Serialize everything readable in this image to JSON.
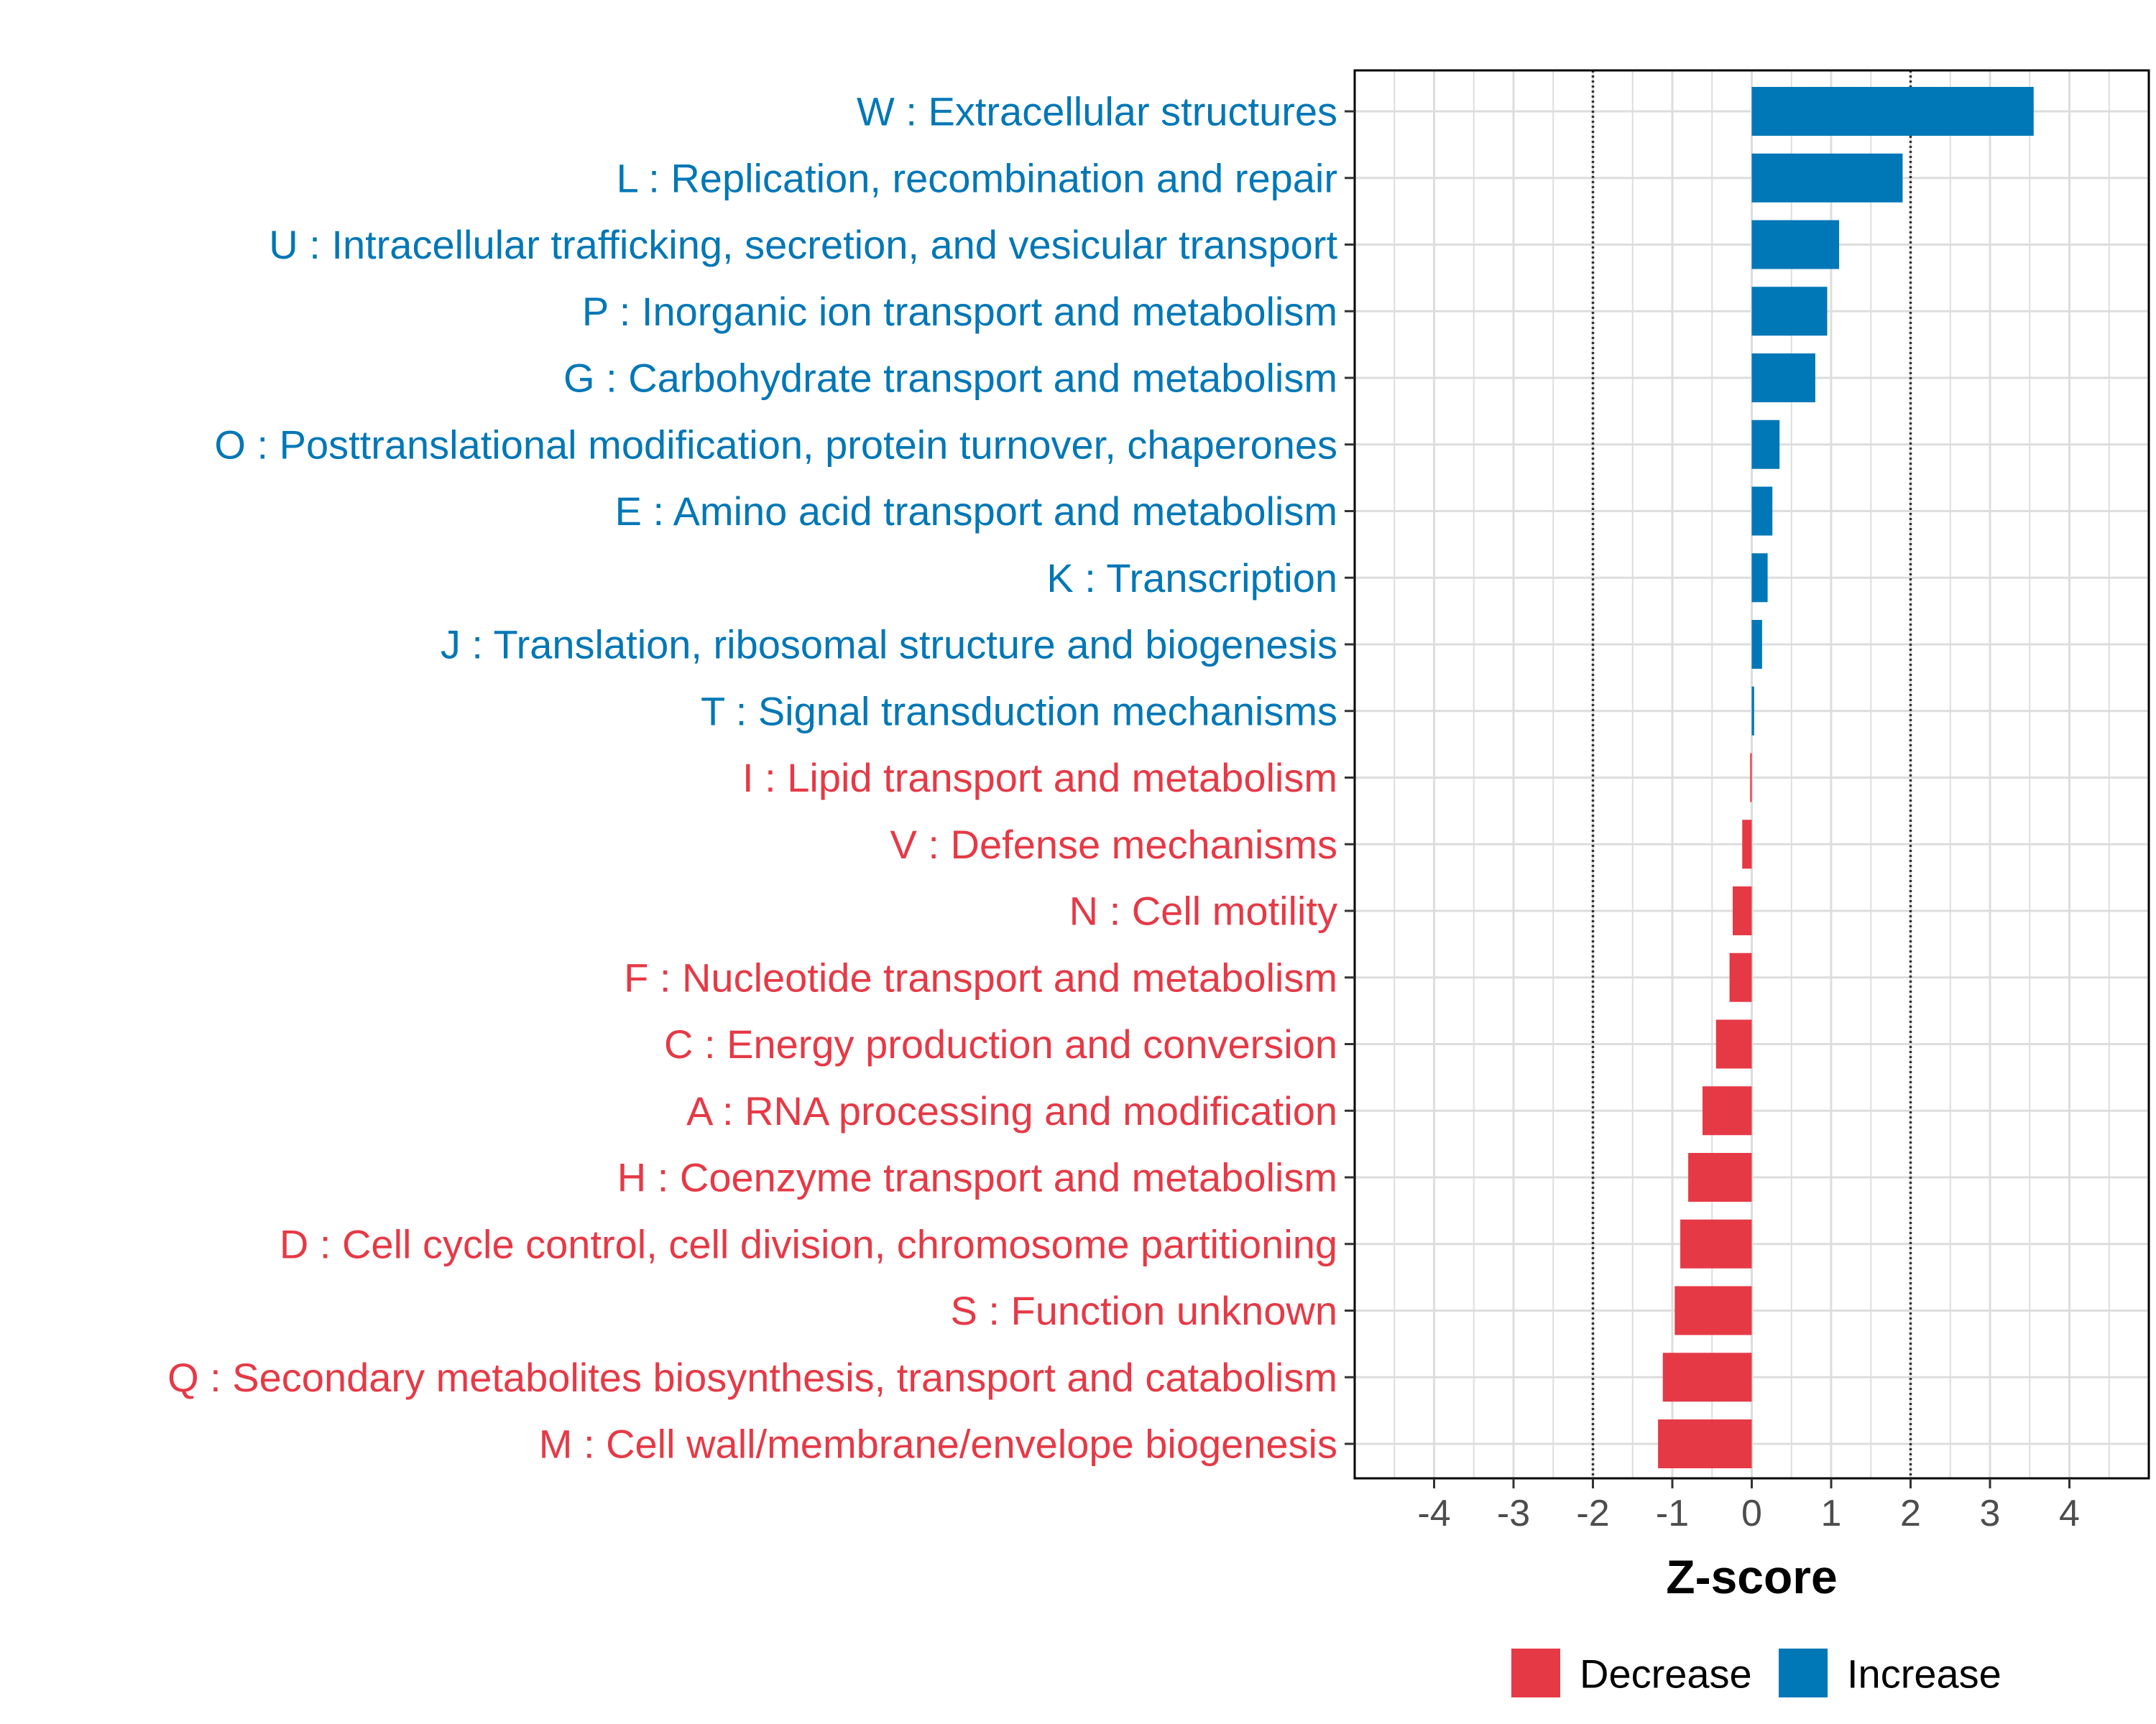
{
  "chart_data": {
    "type": "bar",
    "orientation": "horizontal",
    "title": "",
    "xlabel": "Z-score",
    "ylabel": "",
    "xlim": [
      -5,
      5
    ],
    "xticks": [
      -4,
      -3,
      -2,
      -1,
      0,
      1,
      2,
      3,
      4
    ],
    "xtick_labels": [
      "-4",
      "-3",
      "-2",
      "-1",
      "0",
      "1",
      "2",
      "3",
      "4"
    ],
    "reference_lines": [
      -2,
      2
    ],
    "grid": true,
    "categories": [
      "W : Extracellular structures",
      "L : Replication, recombination and repair",
      "U : Intracellular trafficking, secretion, and vesicular transport",
      "P : Inorganic ion transport and metabolism",
      "G : Carbohydrate transport and metabolism",
      "O : Posttranslational modification, protein turnover, chaperones",
      "E : Amino acid transport and metabolism",
      "K : Transcription",
      "J : Translation, ribosomal structure and biogenesis",
      "T : Signal transduction mechanisms",
      "I : Lipid transport and metabolism",
      "V : Defense mechanisms",
      "N : Cell motility",
      "F : Nucleotide transport and metabolism",
      "C : Energy production and conversion",
      "A : RNA processing and modification",
      "H : Coenzyme transport and metabolism",
      "D : Cell cycle control, cell division, chromosome partitioning",
      "S : Function unknown",
      "Q : Secondary metabolites biosynthesis, transport and catabolism",
      "M : Cell wall/membrane/envelope biogenesis"
    ],
    "values": [
      3.55,
      1.9,
      1.1,
      0.95,
      0.8,
      0.35,
      0.26,
      0.2,
      0.13,
      0.03,
      -0.02,
      -0.12,
      -0.24,
      -0.28,
      -0.45,
      -0.62,
      -0.8,
      -0.9,
      -0.97,
      -1.12,
      -1.18
    ],
    "directions": [
      "Increase",
      "Increase",
      "Increase",
      "Increase",
      "Increase",
      "Increase",
      "Increase",
      "Increase",
      "Increase",
      "Increase",
      "Decrease",
      "Decrease",
      "Decrease",
      "Decrease",
      "Decrease",
      "Decrease",
      "Decrease",
      "Decrease",
      "Decrease",
      "Decrease",
      "Decrease"
    ],
    "legend": {
      "position": "bottom",
      "entries": [
        {
          "label": "Decrease",
          "color": "#e63946"
        },
        {
          "label": "Increase",
          "color": "#0077b6"
        }
      ]
    },
    "colors": {
      "Decrease": "#e63946",
      "Increase": "#0077b6"
    }
  }
}
